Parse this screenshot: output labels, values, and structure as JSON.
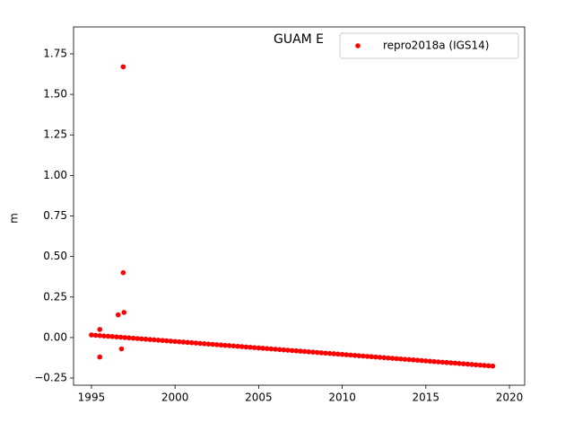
{
  "chart_data": {
    "type": "scatter",
    "title": "GUAM E",
    "ylabel": "m",
    "xlim": [
      1993.93,
      2020.91
    ],
    "ylim": [
      -0.294,
      1.916
    ],
    "xticks": [
      1995,
      2000,
      2005,
      2010,
      2015,
      2020
    ],
    "yticks": [
      {
        "value": -0.25,
        "label": "−0.25"
      },
      {
        "value": 0,
        "label": "0.00"
      },
      {
        "value": 0.25,
        "label": "0.25"
      },
      {
        "value": 0.5,
        "label": "0.50"
      },
      {
        "value": 0.75,
        "label": "0.75"
      },
      {
        "value": 1,
        "label": "1.00"
      },
      {
        "value": 1.25,
        "label": "1.25"
      },
      {
        "value": 1.5,
        "label": "1.50"
      },
      {
        "value": 1.75,
        "label": "1.75"
      }
    ],
    "grid": false,
    "legend": "upper right",
    "series": [
      {
        "name": "repro2018a (IGS14)",
        "color": "#ff0000",
        "x": [
          1995,
          1995.25,
          1995.5,
          1995.75,
          1996,
          1996.25,
          1996.5,
          1996.75,
          1997,
          1997.25,
          1997.5,
          1997.75,
          1998,
          1998.25,
          1998.5,
          1998.75,
          1999,
          1999.25,
          1999.5,
          1999.75,
          2000,
          2000.25,
          2000.5,
          2000.75,
          2001,
          2001.25,
          2001.5,
          2001.75,
          2002,
          2002.25,
          2002.5,
          2002.75,
          2003,
          2003.25,
          2003.5,
          2003.75,
          2004,
          2004.25,
          2004.5,
          2004.75,
          2005,
          2005.25,
          2005.5,
          2005.75,
          2006,
          2006.25,
          2006.5,
          2006.75,
          2007,
          2007.25,
          2007.5,
          2007.75,
          2008,
          2008.25,
          2008.5,
          2008.75,
          2009,
          2009.25,
          2009.5,
          2009.75,
          2010,
          2010.25,
          2010.5,
          2010.75,
          2011,
          2011.25,
          2011.5,
          2011.75,
          2012,
          2012.25,
          2012.5,
          2012.75,
          2013,
          2013.25,
          2013.5,
          2013.75,
          2014,
          2014.25,
          2014.5,
          2014.75,
          2015,
          2015.25,
          2015.5,
          2015.75,
          2016,
          2016.25,
          2016.5,
          2016.75,
          2017,
          2017.25,
          2017.5,
          2017.75,
          2018,
          2018.25,
          2018.5,
          2018.75,
          2019,
          1996.9,
          1996.9,
          1996.95,
          1996.6,
          1996.8,
          1995.5,
          1995.5
        ],
        "values": [
          0.016,
          0.014,
          0.012,
          0.01,
          0.008,
          0.006,
          0.004,
          0.002,
          0,
          -0.002,
          -0.004,
          -0.006,
          -0.008,
          -0.01,
          -0.012,
          -0.014,
          -0.016,
          -0.018,
          -0.02,
          -0.022,
          -0.024,
          -0.026,
          -0.028,
          -0.03,
          -0.032,
          -0.034,
          -0.036,
          -0.038,
          -0.04,
          -0.042,
          -0.044,
          -0.046,
          -0.048,
          -0.05,
          -0.052,
          -0.054,
          -0.056,
          -0.058,
          -0.06,
          -0.062,
          -0.064,
          -0.066,
          -0.068,
          -0.07,
          -0.072,
          -0.074,
          -0.076,
          -0.078,
          -0.08,
          -0.082,
          -0.084,
          -0.086,
          -0.088,
          -0.09,
          -0.092,
          -0.094,
          -0.096,
          -0.098,
          -0.1,
          -0.102,
          -0.104,
          -0.106,
          -0.108,
          -0.11,
          -0.112,
          -0.114,
          -0.116,
          -0.118,
          -0.12,
          -0.122,
          -0.124,
          -0.126,
          -0.128,
          -0.13,
          -0.132,
          -0.134,
          -0.136,
          -0.138,
          -0.14,
          -0.142,
          -0.144,
          -0.146,
          -0.148,
          -0.15,
          -0.152,
          -0.154,
          -0.156,
          -0.158,
          -0.16,
          -0.162,
          -0.164,
          -0.166,
          -0.168,
          -0.17,
          -0.172,
          -0.174,
          -0.176,
          1.67,
          0.4,
          0.155,
          0.14,
          -0.07,
          -0.12,
          0.05
        ]
      }
    ]
  }
}
